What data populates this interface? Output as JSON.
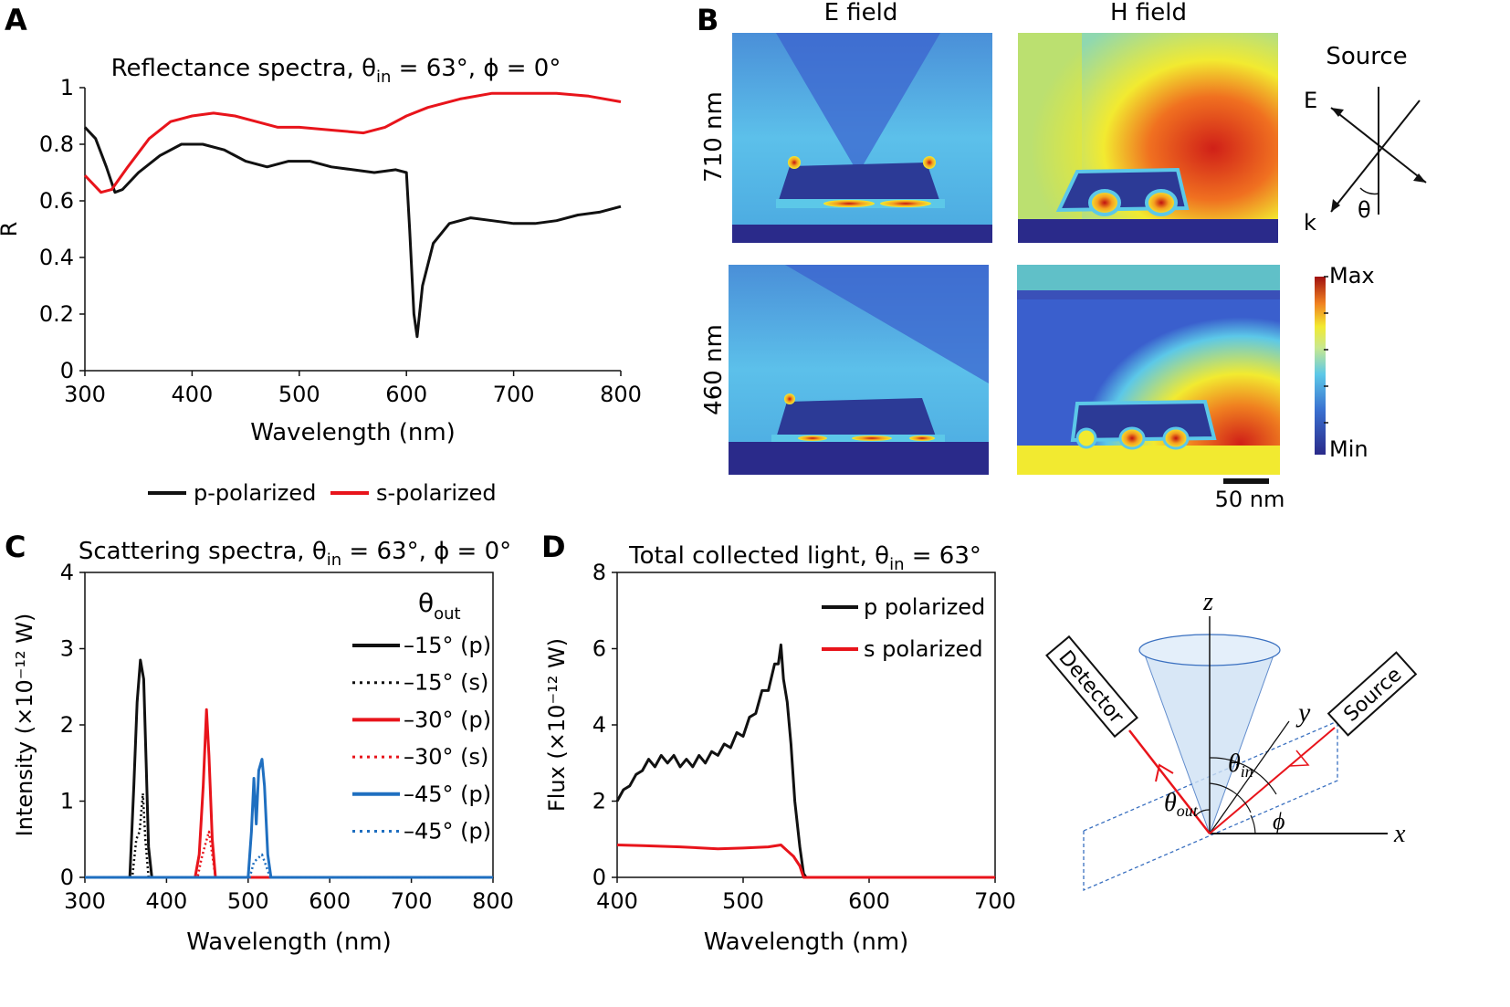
{
  "panels": {
    "A": "A",
    "B": "B",
    "C": "C",
    "D": "D"
  },
  "chart_data": [
    {
      "id": "A",
      "type": "line",
      "title": "Reflectance spectra, θin = 63°, ϕ = 0°",
      "title_main": "Reflectance spectra, θ",
      "title_sub": "in",
      "title_tail": " = 63°, ϕ = 0°",
      "xlabel": "Wavelength (nm)",
      "ylabel": "R",
      "xlim": [
        300,
        800
      ],
      "ylim": [
        0,
        1
      ],
      "xticks": [
        300,
        400,
        500,
        600,
        700,
        800
      ],
      "yticks": [
        0,
        0.2,
        0.4,
        0.6,
        0.8,
        1
      ],
      "ytick_labels": [
        "0",
        "0.2",
        "0.4",
        "0.6",
        "0.8",
        "1"
      ],
      "legend_position": "bottom",
      "series": [
        {
          "name": "p-polarized",
          "color": "#111111",
          "dash": "solid",
          "x": [
            300,
            310,
            320,
            328,
            335,
            350,
            370,
            390,
            410,
            430,
            450,
            470,
            490,
            510,
            530,
            550,
            570,
            590,
            600,
            603,
            607,
            610,
            615,
            625,
            640,
            660,
            680,
            700,
            720,
            740,
            760,
            780,
            800
          ],
          "y": [
            0.86,
            0.82,
            0.72,
            0.63,
            0.64,
            0.7,
            0.76,
            0.8,
            0.8,
            0.78,
            0.74,
            0.72,
            0.74,
            0.74,
            0.72,
            0.71,
            0.7,
            0.71,
            0.7,
            0.5,
            0.2,
            0.12,
            0.3,
            0.45,
            0.52,
            0.54,
            0.53,
            0.52,
            0.52,
            0.53,
            0.55,
            0.56,
            0.58
          ]
        },
        {
          "name": "s-polarized",
          "color": "#e8141b",
          "dash": "solid",
          "x": [
            300,
            315,
            325,
            340,
            360,
            380,
            400,
            420,
            440,
            460,
            480,
            500,
            530,
            560,
            580,
            600,
            620,
            650,
            680,
            710,
            740,
            770,
            800
          ],
          "y": [
            0.69,
            0.63,
            0.64,
            0.72,
            0.82,
            0.88,
            0.9,
            0.91,
            0.9,
            0.88,
            0.86,
            0.86,
            0.85,
            0.84,
            0.86,
            0.9,
            0.93,
            0.96,
            0.98,
            0.98,
            0.98,
            0.97,
            0.95
          ]
        }
      ]
    },
    {
      "id": "C",
      "type": "line",
      "title": "Scattering spectra, θin = 63°, ϕ = 0°",
      "title_main": "Scattering spectra, θ",
      "title_sub": "in",
      "title_tail": " = 63°, ϕ = 0°",
      "xlabel": "Wavelength (nm)",
      "ylabel": "Intensity (×10⁻¹² W)",
      "xlim": [
        300,
        800
      ],
      "ylim": [
        0,
        4
      ],
      "xticks": [
        300,
        400,
        500,
        600,
        700,
        800
      ],
      "yticks": [
        0,
        1,
        2,
        3,
        4
      ],
      "ytick_labels": [
        "0",
        "1",
        "2",
        "3",
        "4"
      ],
      "legend_title": "θ",
      "legend_title_sub": "out",
      "legend_position": "top-right",
      "series": [
        {
          "name": "–15° (p)",
          "color": "#111111",
          "dash": "solid",
          "x": [
            300,
            355,
            360,
            364,
            368,
            372,
            375,
            378,
            382,
            800
          ],
          "y": [
            0,
            0,
            1.2,
            2.3,
            2.85,
            2.6,
            1.5,
            0.4,
            0,
            0
          ]
        },
        {
          "name": "–15° (s)",
          "color": "#111111",
          "dash": "dotted",
          "x": [
            300,
            358,
            363,
            367,
            371,
            374,
            378,
            800
          ],
          "y": [
            0,
            0,
            0.5,
            0.6,
            1.1,
            0.5,
            0,
            0
          ]
        },
        {
          "name": "–30° (p)",
          "color": "#e8141b",
          "dash": "solid",
          "x": [
            300,
            435,
            440,
            445,
            449,
            452,
            456,
            460,
            800
          ],
          "y": [
            0,
            0,
            0.3,
            1.2,
            2.2,
            1.6,
            0.5,
            0,
            0
          ]
        },
        {
          "name": "–30° (s)",
          "color": "#e8141b",
          "dash": "dotted",
          "x": [
            300,
            438,
            443,
            448,
            452,
            456,
            460,
            800
          ],
          "y": [
            0,
            0,
            0.25,
            0.45,
            0.6,
            0.3,
            0,
            0
          ]
        },
        {
          "name": "–45° (p)",
          "color": "#1f6fc0",
          "dash": "solid",
          "x": [
            300,
            500,
            504,
            507,
            510,
            513,
            517,
            520,
            524,
            528,
            800
          ],
          "y": [
            0,
            0,
            0.6,
            1.3,
            0.7,
            1.4,
            1.55,
            1.2,
            0.3,
            0,
            0
          ]
        },
        {
          "name": "–45° (p)",
          "color": "#1f6fc0",
          "dash": "dotted",
          "x": [
            300,
            502,
            507,
            512,
            517,
            522,
            527,
            800
          ],
          "y": [
            0,
            0,
            0.2,
            0.25,
            0.3,
            0.15,
            0,
            0
          ]
        }
      ]
    },
    {
      "id": "D",
      "type": "line",
      "title": "Total collected light, θin = 63°",
      "title_main": "Total collected light, θ",
      "title_sub": "in",
      "title_tail": " = 63°",
      "xlabel": "Wavelength (nm)",
      "ylabel": "Flux (×10⁻¹² W)",
      "xlim": [
        400,
        700
      ],
      "ylim": [
        0,
        8
      ],
      "xticks": [
        400,
        500,
        600,
        700
      ],
      "yticks": [
        0,
        2,
        4,
        6,
        8
      ],
      "ytick_labels": [
        "0",
        "2",
        "4",
        "6",
        "8"
      ],
      "legend_position": "top-right",
      "series": [
        {
          "name": "p polarized",
          "color": "#111111",
          "dash": "solid",
          "x": [
            400,
            405,
            410,
            415,
            420,
            425,
            430,
            435,
            440,
            445,
            450,
            455,
            460,
            465,
            470,
            475,
            480,
            485,
            490,
            495,
            500,
            505,
            510,
            515,
            520,
            525,
            528,
            530,
            532,
            535,
            538,
            541,
            545,
            548,
            550,
            700
          ],
          "y": [
            2.0,
            2.3,
            2.4,
            2.7,
            2.8,
            3.1,
            2.9,
            3.2,
            3.0,
            3.2,
            2.9,
            3.1,
            2.9,
            3.2,
            3.0,
            3.3,
            3.2,
            3.5,
            3.4,
            3.8,
            3.7,
            4.2,
            4.3,
            4.9,
            4.9,
            5.6,
            5.6,
            6.1,
            5.2,
            4.6,
            3.5,
            2.0,
            0.8,
            0.1,
            0,
            0
          ]
        },
        {
          "name": "s polarized",
          "color": "#e8141b",
          "dash": "solid",
          "x": [
            400,
            420,
            450,
            480,
            500,
            520,
            530,
            535,
            540,
            545,
            548,
            700
          ],
          "y": [
            0.85,
            0.83,
            0.8,
            0.75,
            0.77,
            0.8,
            0.85,
            0.7,
            0.55,
            0.3,
            0,
            0
          ]
        }
      ]
    }
  ],
  "panel_B": {
    "col_labels": [
      "E field",
      "H field"
    ],
    "row_labels": [
      "710 nm",
      "460 nm"
    ],
    "source_label": "Source",
    "e_label": "E",
    "k_label": "k",
    "theta_label": "θ",
    "colorbar_max": "Max",
    "colorbar_min": "Min",
    "scale_bar": "50 nm",
    "colormap": [
      "#2a2a8a",
      "#3a5fcd",
      "#4fb3e6",
      "#a8e0c0",
      "#f2ea30",
      "#f5a020",
      "#e8301a",
      "#a01010"
    ]
  },
  "diagram": {
    "z": "z",
    "y": "y",
    "x": "x",
    "detector": "Detector",
    "source": "Source",
    "theta_in": "θ",
    "theta_in_sub": "in",
    "theta_out": "θ",
    "theta_out_sub": "out",
    "phi": "ϕ"
  }
}
